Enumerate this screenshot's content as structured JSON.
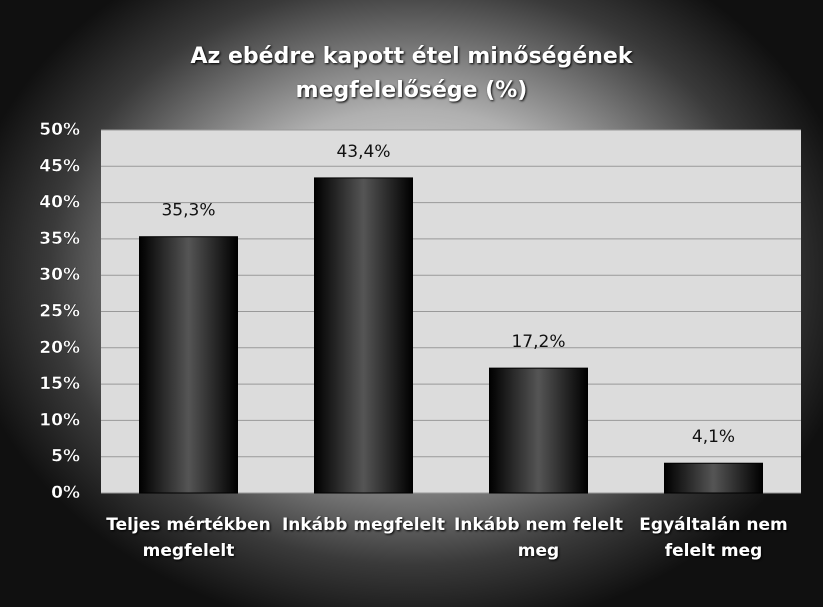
{
  "chart_data": {
    "type": "bar",
    "title": "Az ebédre kapott étel minőségének megfelelősége (%)",
    "categories": [
      "Teljes mértékben megfelelt",
      "Inkább megfelelt",
      "Inkább nem felelt meg",
      "Egyáltalán nem felelt meg"
    ],
    "values": [
      35.3,
      43.4,
      17.2,
      4.1
    ],
    "value_labels": [
      "35,3%",
      "43,4%",
      "17,2%",
      "4,1%"
    ],
    "color": "#1a1a1a",
    "ylim": [
      0,
      50
    ],
    "yticks": [
      {
        "value": 0,
        "label": "0%"
      },
      {
        "value": 5,
        "label": "5%"
      },
      {
        "value": 10,
        "label": "10%"
      },
      {
        "value": 15,
        "label": "15%"
      },
      {
        "value": 20,
        "label": "20%"
      },
      {
        "value": 25,
        "label": "25%"
      },
      {
        "value": 30,
        "label": "30%"
      },
      {
        "value": 35,
        "label": "35%"
      },
      {
        "value": 40,
        "label": "40%"
      },
      {
        "value": 45,
        "label": "45%"
      },
      {
        "value": 50,
        "label": "50%"
      }
    ],
    "grid": true
  }
}
